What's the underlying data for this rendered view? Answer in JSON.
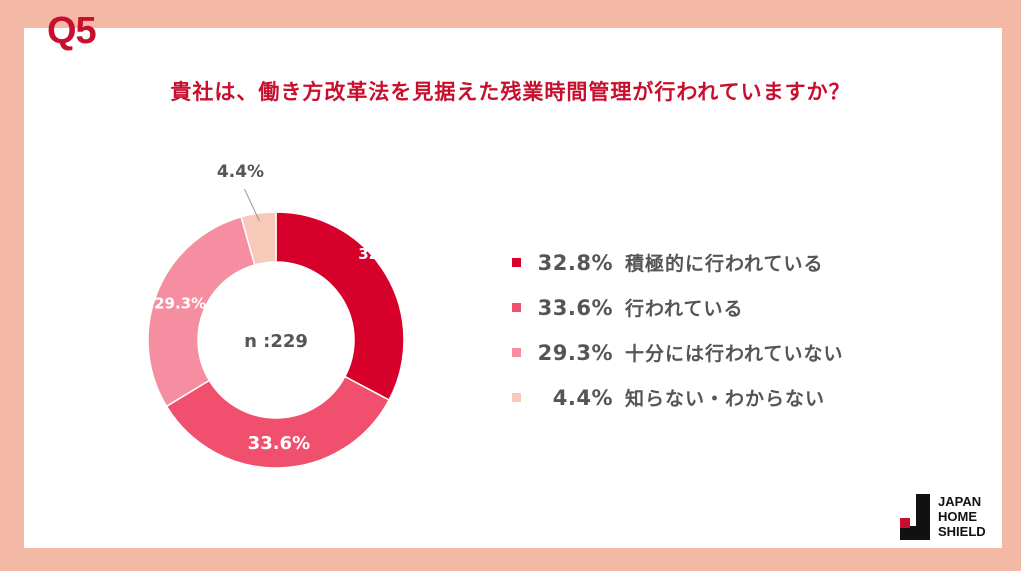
{
  "question_label": "Q5",
  "title": "貴社は、働き方改革法を見据えた残業時間管理が行われていますか？",
  "chart_data": {
    "type": "pie",
    "donut": true,
    "center_label": "n :229",
    "categories": [
      "積極的に行われている",
      "行われている",
      "十分には行われていない",
      "知らない・わからない"
    ],
    "values": [
      32.8,
      33.6,
      29.3,
      4.4
    ],
    "value_labels": [
      "32.8%",
      "33.6%",
      "29.3%",
      "4.4%"
    ],
    "colors": [
      "#D7002A",
      "#F0506E",
      "#F58EA0",
      "#F6C9B9"
    ],
    "legend_position": "right"
  },
  "legend": [
    {
      "pct": "32.8%",
      "label": "積極的に行われている"
    },
    {
      "pct": "33.6%",
      "label": "行われている"
    },
    {
      "pct": "29.3%",
      "label": "十分には行われていない"
    },
    {
      "pct": "4.4%",
      "label": "知らない・わからない"
    }
  ],
  "logo": {
    "lines": [
      "JAPAN",
      "HOME",
      "SHIELD"
    ]
  }
}
